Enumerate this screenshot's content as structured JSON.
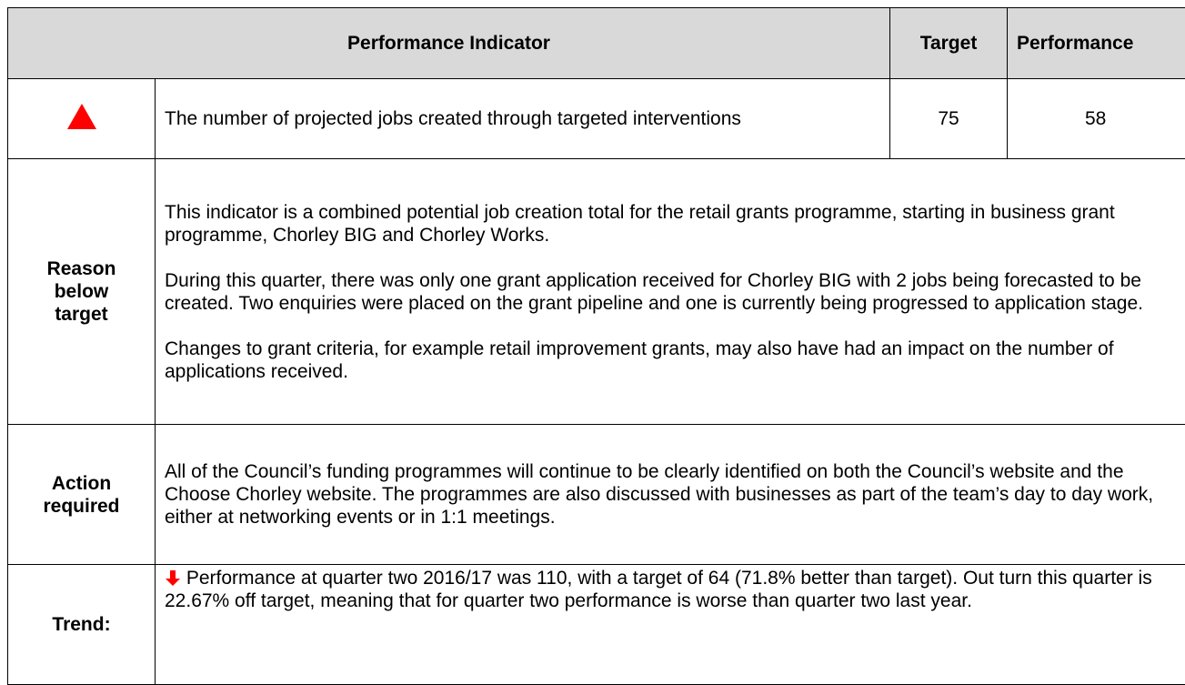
{
  "table": {
    "header": [
      "Performance Indicator",
      "Target",
      "Performance"
    ],
    "indicator": {
      "description": "The number of projected jobs created through targeted interventions",
      "target": 75,
      "performance": 58
    },
    "sections": [
      {
        "label": "Reason below target",
        "paragraphs": [
          "This indicator is a combined potential job creation total for the retail grants programme, starting in business grant programme, Chorley BIG and Chorley Works.",
          "During this quarter, there was only one grant application received for Chorley BIG with 2 jobs being forecasted to be created. Two enquiries were placed on the grant pipeline and one is currently being progressed to application stage.",
          "Changes to grant criteria, for example retail improvement grants, may also have had an impact on the number of applications received."
        ]
      },
      {
        "label": "Action required",
        "paragraphs": [
          "All of the Council’s funding programmes will continue to be clearly identified on both the Council’s website and the Choose Chorley website. The programmes are also discussed with businesses as part of the team’s day to day work, either at networking events or in 1:1 meetings."
        ]
      },
      {
        "label": "Trend:",
        "paragraphs": [
          "Performance at quarter two 2016/17 was 110, with a target of 64 (71.8% better than target). Out turn this quarter is 22.67% off target, meaning that for quarter two performance is worse than quarter two last year."
        ]
      }
    ]
  }
}
